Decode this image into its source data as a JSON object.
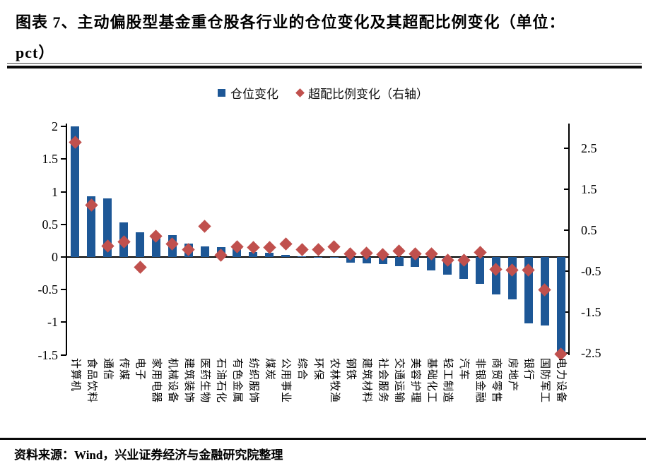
{
  "header": {
    "title_line1": "图表 7、主动偏股型基金重仓股各行业的仓位变化及其超配比例变化（单位：",
    "title_line2": "pct）"
  },
  "legend": {
    "bar_label": "仓位变化",
    "diamond_label": "超配比例变化（右轴）"
  },
  "footer": {
    "source": "资料来源：Wind，兴业证券经济与金融研究院整理"
  },
  "colors": {
    "bar": "#1D5796",
    "diamond": "#C0504D",
    "axis": "#000000"
  },
  "chart_data": {
    "type": "bar",
    "subtype": "dual-axis bar + diamond scatter",
    "grid": false,
    "legend_position": "top-center",
    "categories": [
      "计算机",
      "食品饮料",
      "通信",
      "传媒",
      "电子",
      "家用电器",
      "机械设备",
      "建筑装饰",
      "医药生物",
      "石油石化",
      "有色金属",
      "纺织服饰",
      "煤炭",
      "公用事业",
      "综合",
      "环保",
      "农林牧渔",
      "钢铁",
      "建筑材料",
      "社会服务",
      "交通运输",
      "美容护理",
      "基础化工",
      "轻工制造",
      "汽车",
      "非银金融",
      "商贸零售",
      "房地产",
      "银行",
      "国防军工",
      "电力设备"
    ],
    "series": [
      {
        "name": "仓位变化",
        "type": "bar",
        "axis": "left",
        "values": [
          2.0,
          0.93,
          0.9,
          0.53,
          0.38,
          0.35,
          0.33,
          0.21,
          0.16,
          0.15,
          0.17,
          0.08,
          0.06,
          0.03,
          0.01,
          -0.01,
          -0.01,
          -0.09,
          -0.1,
          -0.11,
          -0.14,
          -0.15,
          -0.21,
          -0.27,
          -0.34,
          -0.41,
          -0.57,
          -0.65,
          -1.02,
          -1.05,
          -1.49
        ]
      },
      {
        "name": "超配比例变化（右轴）",
        "type": "scatter-diamond",
        "axis": "right",
        "values": [
          2.65,
          1.12,
          0.11,
          0.22,
          -0.4,
          0.35,
          0.16,
          0.03,
          0.59,
          -0.12,
          0.09,
          0.08,
          0.07,
          0.16,
          0.03,
          0.03,
          0.09,
          -0.08,
          -0.06,
          -0.1,
          -0.01,
          -0.08,
          -0.08,
          -0.23,
          -0.24,
          -0.05,
          -0.45,
          -0.47,
          -0.48,
          -0.95,
          -2.52
        ]
      }
    ],
    "left_axis": {
      "tick_labels": [
        "2",
        "1.5",
        "1",
        "0.5",
        "0",
        "-0.5",
        "-1",
        "-1.5"
      ],
      "tick_values": [
        2,
        1.5,
        1,
        0.5,
        0,
        -0.5,
        -1,
        -1.5
      ],
      "range_top": 2.045,
      "range_bottom": -1.505
    },
    "right_axis": {
      "tick_labels": [
        "2.5",
        "1.5",
        "0.5",
        "-0.5",
        "-1.5",
        "-2.5"
      ],
      "tick_values": [
        2.5,
        1.5,
        0.5,
        -0.5,
        -1.5,
        -2.5
      ],
      "range_top": 3.103,
      "range_bottom": -2.552
    }
  }
}
